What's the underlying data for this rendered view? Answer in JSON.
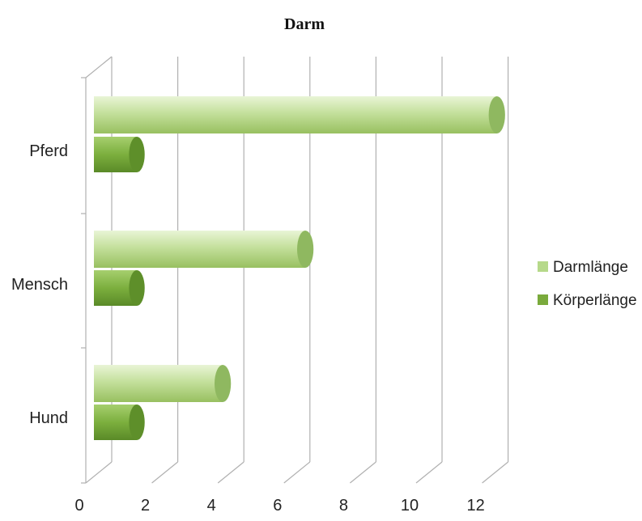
{
  "chart_data": {
    "type": "bar",
    "orientation": "horizontal",
    "title": "Darm",
    "categories": [
      "Pferd",
      "Mensch",
      "Hund"
    ],
    "series": [
      {
        "name": "Darmlänge",
        "values": [
          12.2,
          6.4,
          3.9
        ],
        "color": "#b6d98a"
      },
      {
        "name": "Körperlänge",
        "values": [
          1.3,
          1.3,
          1.3
        ],
        "color": "#7aaa3c"
      }
    ],
    "x_ticks": [
      "0",
      "2",
      "4",
      "6",
      "8",
      "10",
      "12"
    ],
    "xlim": [
      0,
      12.8
    ],
    "grid": true,
    "legend_position": "right"
  }
}
